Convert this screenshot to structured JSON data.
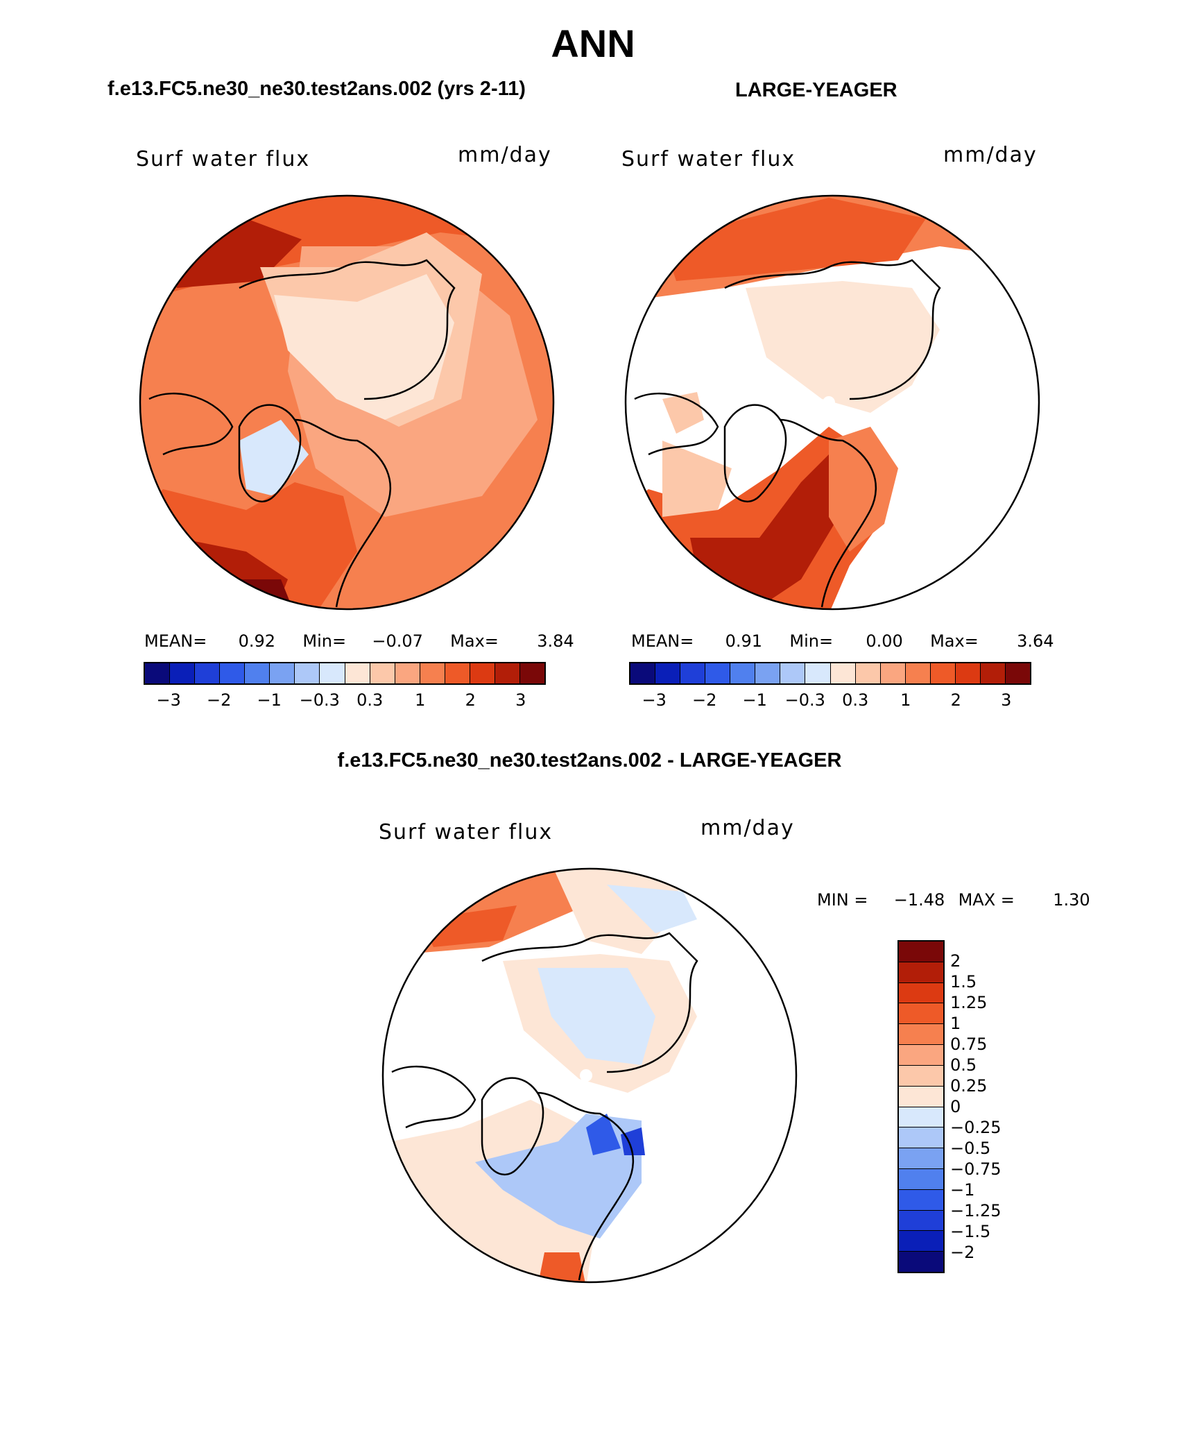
{
  "title": "ANN",
  "panel_top_left": {
    "case": "f.e13.FC5.ne30_ne30.test2ans.002 (yrs 2-11)",
    "variable": "Surf water flux",
    "units": "mm/day",
    "stats": {
      "mean_label": "MEAN=",
      "mean": "0.92",
      "min_label": "Min=",
      "min": "−0.07",
      "max_label": "Max=",
      "max": "3.84"
    }
  },
  "panel_top_right": {
    "case": "LARGE-YEAGER",
    "variable": "Surf water flux",
    "units": "mm/day",
    "stats": {
      "mean_label": "MEAN=",
      "mean": "0.91",
      "min_label": "Min=",
      "min": "0.00",
      "max_label": "Max=",
      "max": "3.64"
    }
  },
  "colorbar_top": {
    "tick_labels": [
      "−3",
      "−2",
      "−1",
      "−0.3",
      "0.3",
      "1",
      "2",
      "3"
    ],
    "colors": [
      "#0a0a7a",
      "#0a1fb8",
      "#1f3fd8",
      "#2f5ae8",
      "#5080ee",
      "#7aa2f2",
      "#adc8f8",
      "#d8e8fc",
      "#fde6d6",
      "#fcc8aa",
      "#faa680",
      "#f6804f",
      "#ee5a28",
      "#dc3a12",
      "#b21e08",
      "#7a0808"
    ]
  },
  "panel_bottom": {
    "case": "f.e13.FC5.ne30_ne30.test2ans.002 - LARGE-YEAGER",
    "variable": "Surf water flux",
    "units": "mm/day",
    "minmax": {
      "min_label": "MIN =",
      "min": "−1.48",
      "max_label": "MAX =",
      "max": "1.30"
    }
  },
  "colorbar_diff": {
    "labels": [
      "2",
      "1.5",
      "1.25",
      "1",
      "0.75",
      "0.5",
      "0.25",
      "0",
      "−0.25",
      "−0.5",
      "−0.75",
      "−1",
      "−1.25",
      "−1.5",
      "−2"
    ],
    "colors": [
      "#7a0808",
      "#b21e08",
      "#dc3a12",
      "#ee5a28",
      "#f6804f",
      "#faa680",
      "#fcc8aa",
      "#fde6d6",
      "#d8e8fc",
      "#adc8f8",
      "#7aa2f2",
      "#5080ee",
      "#2f5ae8",
      "#1f3fd8",
      "#0a1fb8",
      "#0a0a7a"
    ]
  }
}
